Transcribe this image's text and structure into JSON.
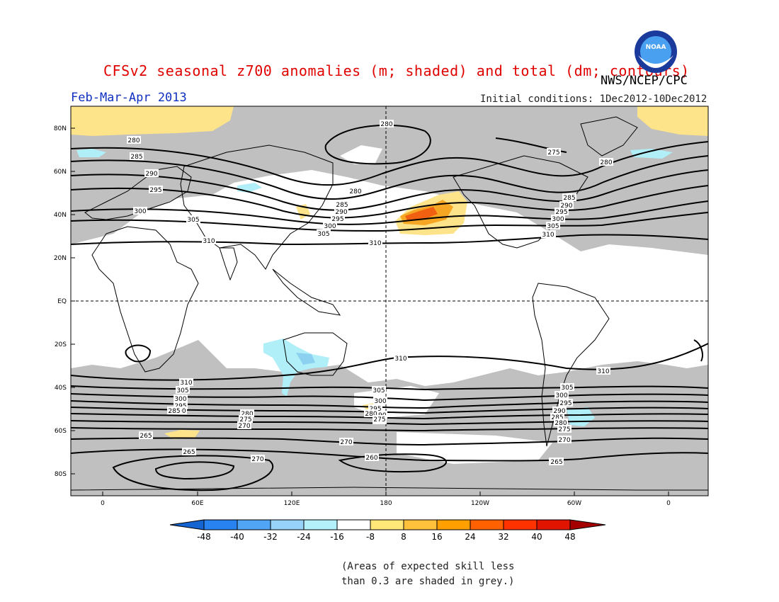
{
  "header": {
    "title": "CFSv2 seasonal z700 anomalies (m; shaded) and total (dm; contours)",
    "agency": "NWS/NCEP/CPC",
    "logo_text": "NOAA",
    "period": "Feb-Mar-Apr 2013",
    "initial_conditions": "Initial conditions: 1Dec2012-10Dec2012"
  },
  "map": {
    "projection": "global lat-lon",
    "lat_labels": [
      "80N",
      "60N",
      "40N",
      "20N",
      "EQ",
      "20S",
      "40S",
      "60S",
      "80S"
    ],
    "lon_labels": [
      "0",
      "60E",
      "120E",
      "180",
      "120W",
      "60W",
      "0"
    ],
    "contour_labels_north": [
      "280",
      "280",
      "285",
      "290",
      "295",
      "300",
      "305",
      "310",
      "310",
      "280",
      "285",
      "290",
      "295",
      "300",
      "305",
      "310",
      "275",
      "280",
      "285",
      "290",
      "295",
      "300",
      "305",
      "310",
      "280"
    ],
    "contour_labels_south": [
      "310",
      "310",
      "310",
      "305",
      "300",
      "295",
      "290",
      "285",
      "280",
      "275",
      "270",
      "265",
      "265",
      "270",
      "260",
      "305",
      "300",
      "295",
      "290",
      "285",
      "280",
      "275",
      "270",
      "265",
      "305",
      "300",
      "295",
      "290",
      "285",
      "280",
      "275",
      "270",
      "265",
      "265"
    ],
    "colors": {
      "skill_mask_grey": "#c0c0c0",
      "positive_light": "#fde38a",
      "positive_orange": "#f5a623",
      "positive_dark": "#f06010",
      "negative_light": "#b0eef8",
      "negative_mid": "#8cd2f0"
    }
  },
  "colorbar": {
    "labels": [
      "-48",
      "-40",
      "-32",
      "-24",
      "-16",
      "-8",
      "8",
      "16",
      "24",
      "32",
      "40",
      "48"
    ],
    "colors": [
      "#1464d2",
      "#2882f0",
      "#50a5f5",
      "#96d2fa",
      "#b4f0fa",
      "#ffffff",
      "#ffe878",
      "#ffc03c",
      "#ffa000",
      "#ff6000",
      "#ff3200",
      "#e11400",
      "#a50000"
    ]
  },
  "footnote": {
    "line1": "(Areas of expected skill less",
    "line2": "than 0.3 are shaded in grey.)"
  }
}
